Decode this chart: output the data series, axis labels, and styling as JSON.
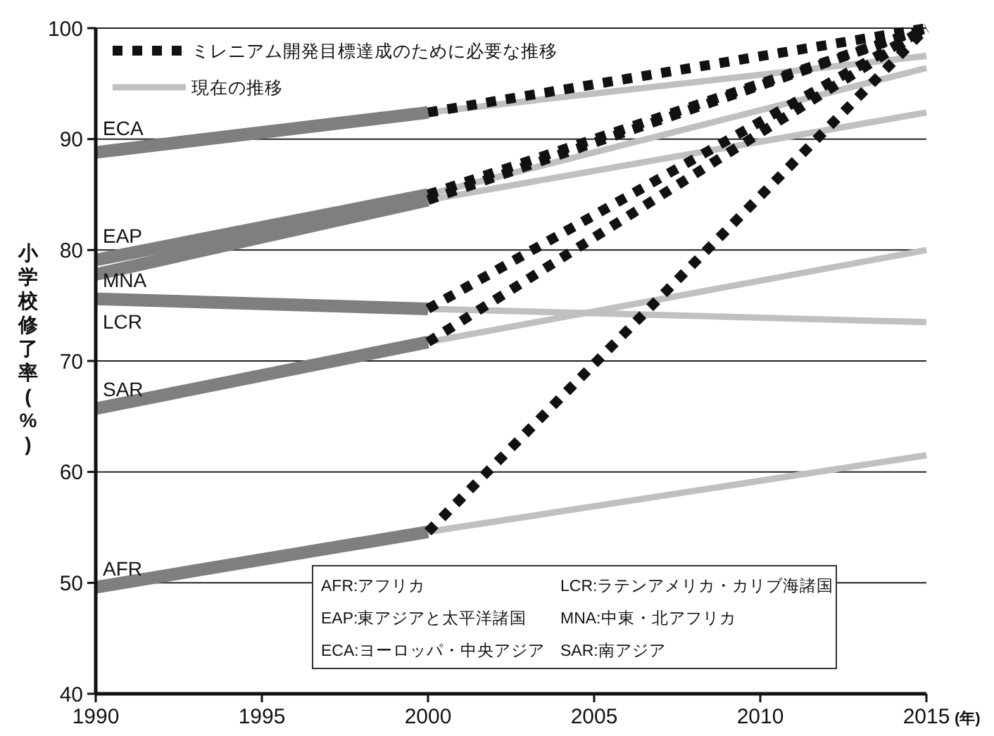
{
  "chart_data": {
    "type": "line",
    "xlabel": "(年)",
    "ylabel": "小学校修了率(%)",
    "xlim": [
      1990,
      2015
    ],
    "xticks": [
      1990,
      1995,
      2000,
      2005,
      2010,
      2015
    ],
    "ylim": [
      40,
      100
    ],
    "yticks": [
      40,
      50,
      60,
      70,
      80,
      90,
      100
    ],
    "grid": "y",
    "legend": "top left",
    "series": [
      {
        "color": "#7f7f7f",
        "x": [
          1990,
          2000
        ],
        "values": [
          88.8,
          92.4
        ]
      },
      {
        "color": "#7f7f7f",
        "x": [
          1990,
          2000
        ],
        "values": [
          79.1,
          85
        ]
      },
      {
        "color": "#7f7f7f",
        "x": [
          1990,
          2000
        ],
        "values": [
          77.8,
          84.5
        ]
      },
      {
        "color": "#7f7f7f",
        "x": [
          1990,
          2000
        ],
        "values": [
          75.6,
          74.7
        ]
      },
      {
        "color": "#7f7f7f",
        "x": [
          1990,
          2000
        ],
        "values": [
          65.7,
          71.7
        ]
      },
      {
        "color": "#7f7f7f",
        "x": [
          1990,
          2000
        ],
        "values": [
          49.6,
          54.6
        ]
      },
      {
        "name": "現在の推移",
        "color": "#c0c0c2",
        "x": [
          2000,
          2015
        ],
        "values": [
          92.4,
          97.5
        ]
      },
      {
        "color": "#c0c0c2",
        "x": [
          2000,
          2015
        ],
        "values": [
          85,
          96.4
        ]
      },
      {
        "color": "#c0c0c2",
        "x": [
          2000,
          2015
        ],
        "values": [
          84.5,
          92.4
        ]
      },
      {
        "color": "#c0c0c2",
        "x": [
          2000,
          2015
        ],
        "values": [
          74.7,
          73.5
        ]
      },
      {
        "color": "#c0c0c2",
        "x": [
          2000,
          2015
        ],
        "values": [
          71.7,
          80
        ]
      },
      {
        "color": "#c0c0c2",
        "x": [
          2000,
          2015
        ],
        "values": [
          54.6,
          61.5
        ]
      },
      {
        "name": "ミレニアム開発目標達成のために必要な推移",
        "color": "#111111",
        "line_style": "dotted",
        "x": [
          2000,
          2015
        ],
        "values": [
          92.4,
          100
        ]
      },
      {
        "color": "#111111",
        "line_style": "dotted",
        "x": [
          2000,
          2015
        ],
        "values": [
          85,
          100
        ]
      },
      {
        "color": "#111111",
        "line_style": "dotted",
        "x": [
          2000,
          2015
        ],
        "values": [
          84.5,
          100
        ]
      },
      {
        "color": "#111111",
        "line_style": "dotted",
        "x": [
          2000,
          2015
        ],
        "values": [
          74.7,
          100
        ]
      },
      {
        "color": "#111111",
        "line_style": "dotted",
        "x": [
          2000,
          2015
        ],
        "values": [
          71.7,
          100
        ]
      },
      {
        "color": "#111111",
        "line_style": "dotted",
        "x": [
          2000,
          2015
        ],
        "values": [
          54.6,
          100
        ]
      }
    ],
    "annotations": [
      "ECA",
      "EAP",
      "MNA",
      "LCR",
      "SAR",
      "AFR",
      "AFR:アフリカ",
      "EAP:東アジアと太平洋諸国",
      "ECA:ヨーロッパ・中央アジア",
      "LCR:ラテンアメリカ・カリブ海諸国",
      "MNA:中東・北アフリカ",
      "SAR:南アジア"
    ]
  }
}
